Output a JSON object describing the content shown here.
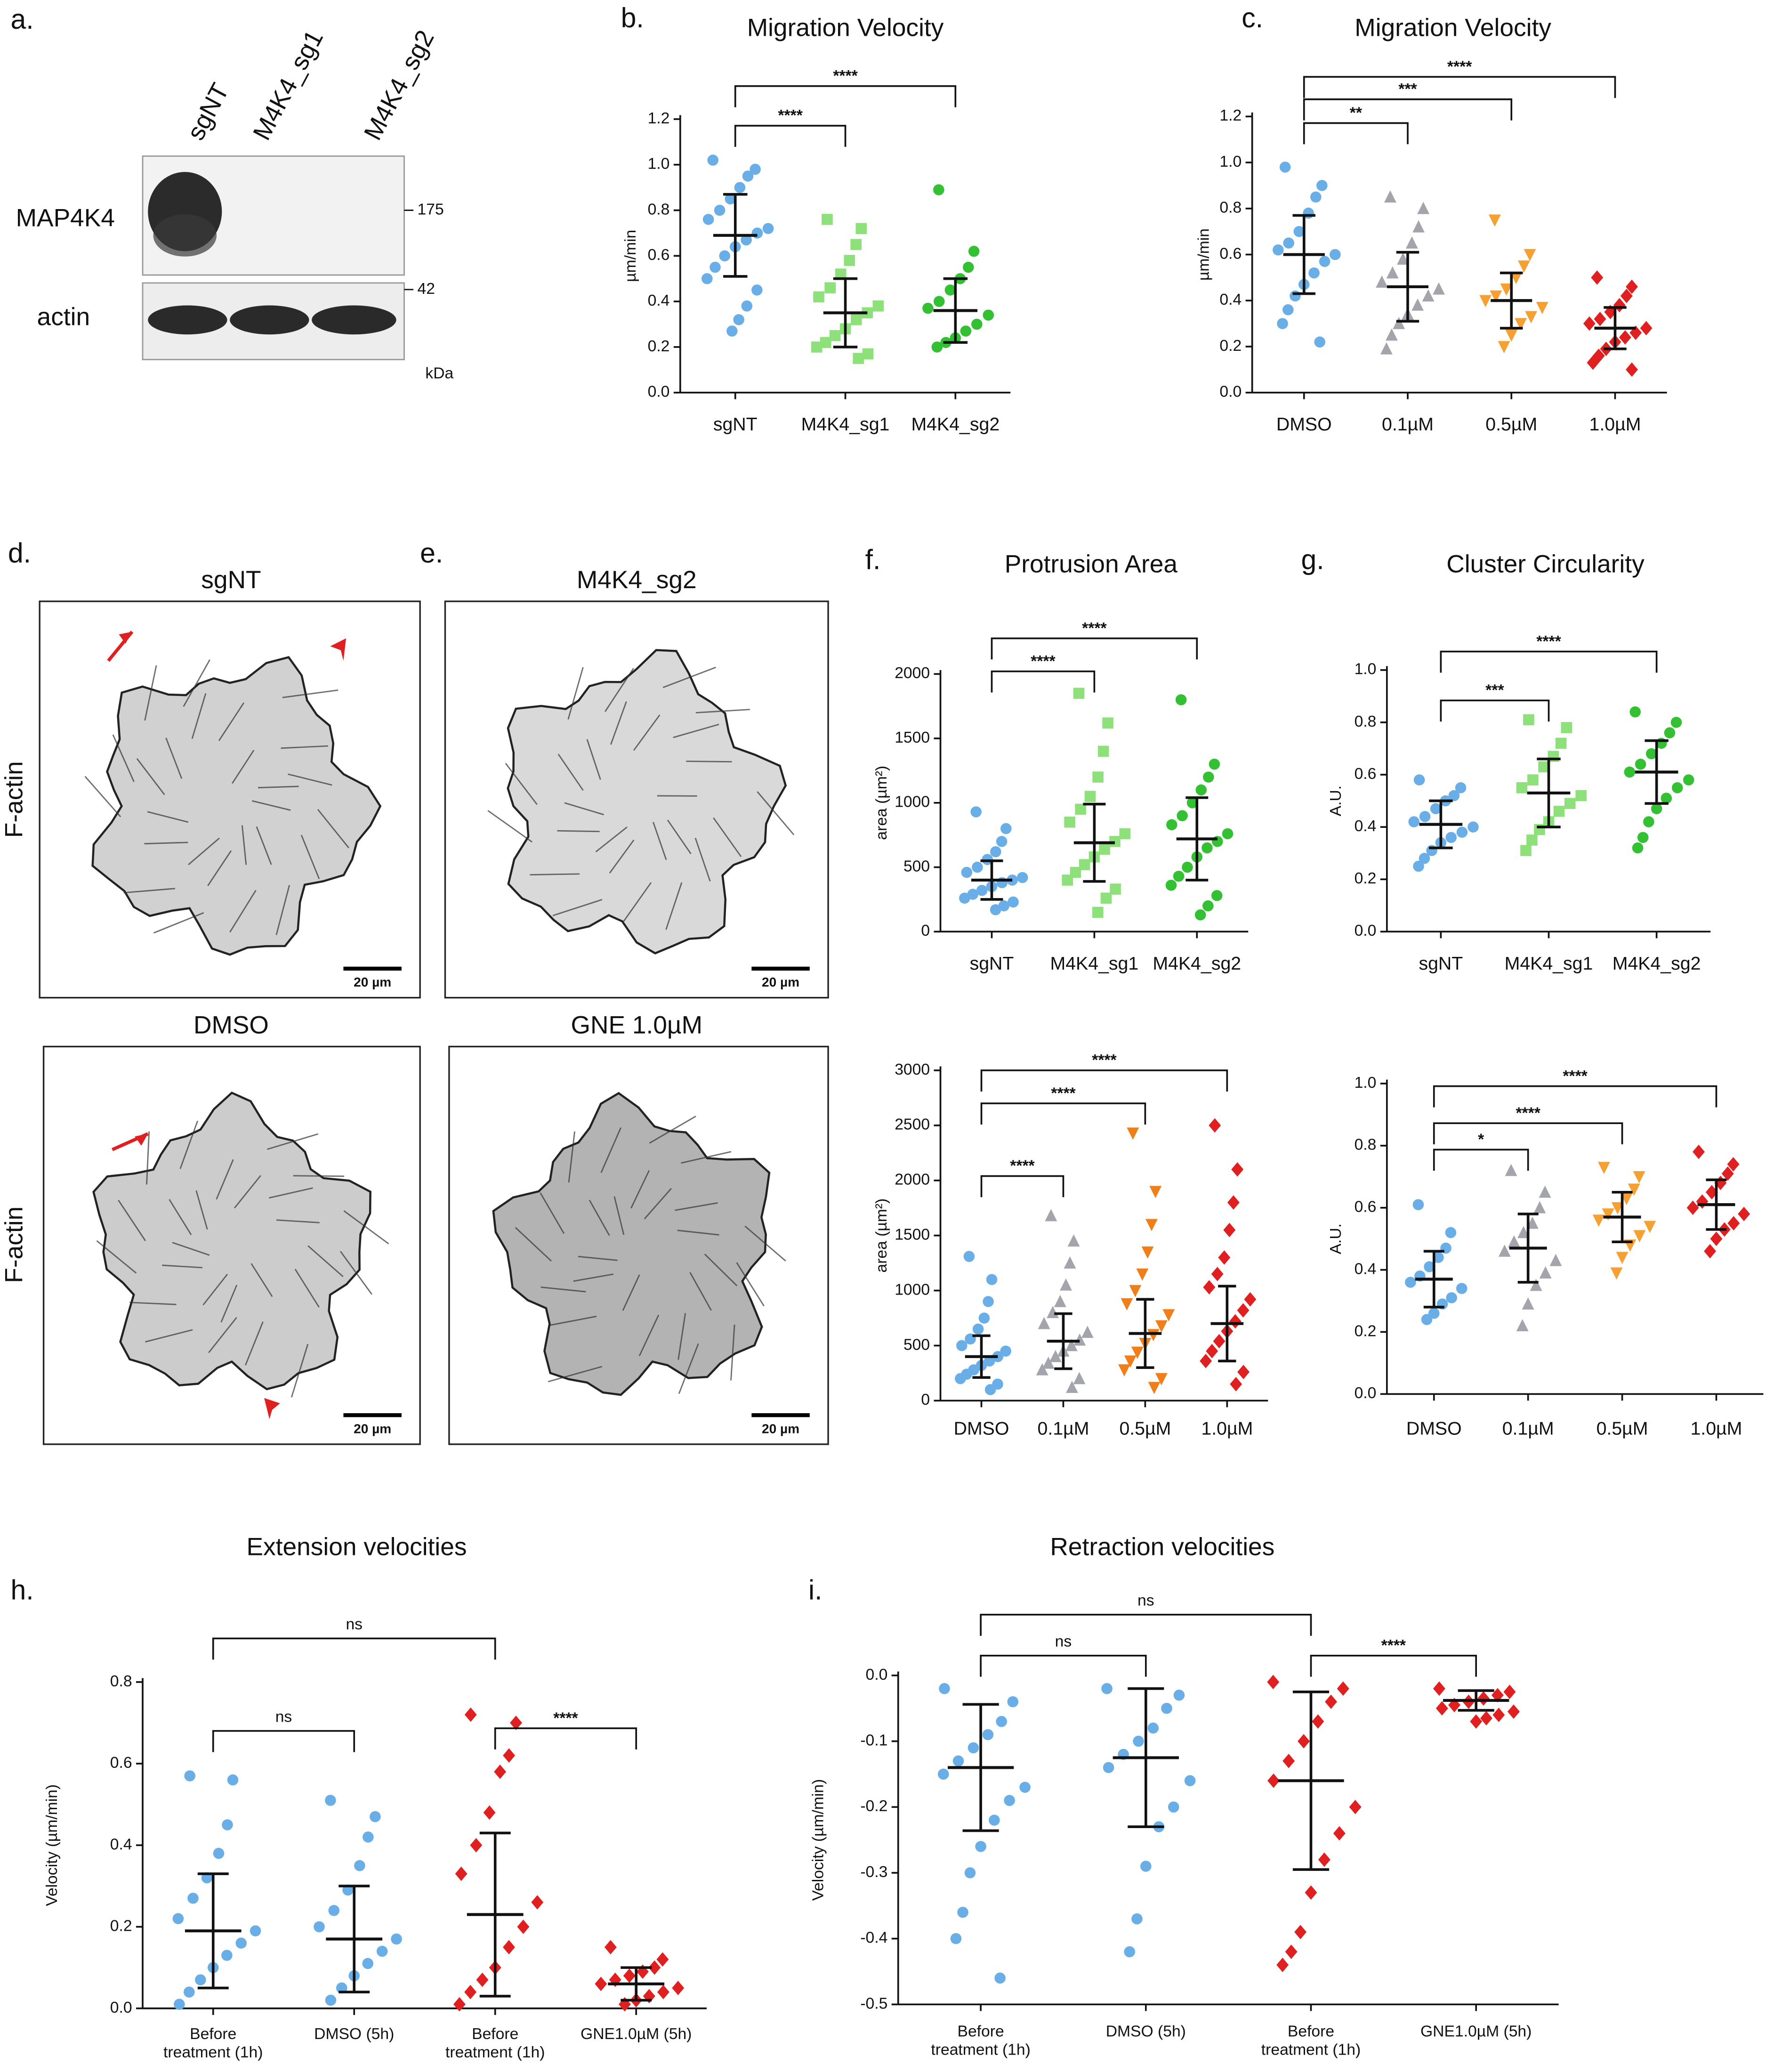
{
  "blot": {
    "label": "a.",
    "lanes": [
      "sgNT",
      "M4K4_sg1",
      "M4K4_sg2"
    ],
    "rows": [
      "MAP4K4",
      "actin"
    ],
    "markers": [
      175,
      42
    ],
    "unit": "kDa"
  },
  "micrographs": {
    "labels": [
      "d.",
      "e."
    ],
    "stain": "F-actin",
    "scale": "20 µm",
    "images": [
      {
        "title": "sgNT"
      },
      {
        "title": "M4K4_sg2"
      },
      {
        "title": "DMSO"
      },
      {
        "title": "GNE 1.0µM"
      }
    ]
  },
  "chart_data": [
    {
      "type": "dot",
      "label": "b.",
      "title": "Migration Velocity",
      "ylabel": "µm/min",
      "categories": [
        "sgNT",
        "M4K4_sg1",
        "M4K4_sg2"
      ],
      "ylim": [
        0,
        1.2
      ],
      "yticks": [
        {
          "value": 0,
          "label": "0.0"
        },
        0.2,
        0.4,
        0.6,
        0.8,
        {
          "value": 1,
          "label": "1.0"
        },
        1.2
      ],
      "groups": [
        {
          "color": "#6aaee8",
          "marker": "circle",
          "mean": 0.69,
          "sd": 0.18,
          "points": [
            1.02,
            0.98,
            0.95,
            0.9,
            0.85,
            0.8,
            0.76,
            0.72,
            0.7,
            0.67,
            0.64,
            0.6,
            0.55,
            0.5,
            0.45,
            0.38,
            0.32,
            0.27
          ]
        },
        {
          "color": "#8ee07a",
          "marker": "square",
          "mean": 0.35,
          "sd": 0.15,
          "points": [
            0.76,
            0.72,
            0.65,
            0.58,
            0.52,
            0.46,
            0.42,
            0.38,
            0.35,
            0.32,
            0.28,
            0.25,
            0.22,
            0.2,
            0.17,
            0.15
          ]
        },
        {
          "color": "#33c133",
          "marker": "circle",
          "mean": 0.36,
          "sd": 0.14,
          "points": [
            0.89,
            0.62,
            0.55,
            0.5,
            0.45,
            0.4,
            0.37,
            0.34,
            0.3,
            0.27,
            0.24,
            0.22,
            0.2
          ]
        }
      ],
      "brackets": [
        {
          "from": 0,
          "to": 1,
          "label": "****"
        },
        {
          "from": 0,
          "to": 2,
          "label": "****"
        }
      ]
    },
    {
      "type": "dot",
      "label": "c.",
      "title": "Migration Velocity",
      "ylabel": "µm/min",
      "categories": [
        "DMSO",
        "0.1µM",
        "0.5µM",
        "1.0µM"
      ],
      "ylim": [
        0,
        1.2
      ],
      "yticks": [
        {
          "value": 0,
          "label": "0.0"
        },
        0.2,
        0.4,
        0.6,
        0.8,
        {
          "value": 1,
          "label": "1.0"
        },
        1.2
      ],
      "groups": [
        {
          "color": "#6aaee8",
          "marker": "circle",
          "mean": 0.6,
          "sd": 0.17,
          "points": [
            0.98,
            0.9,
            0.85,
            0.78,
            0.7,
            0.65,
            0.62,
            0.6,
            0.57,
            0.52,
            0.47,
            0.42,
            0.36,
            0.3,
            0.22
          ]
        },
        {
          "color": "#a4a4ac",
          "marker": "triangle",
          "mean": 0.46,
          "sd": 0.15,
          "points": [
            0.85,
            0.8,
            0.72,
            0.65,
            0.58,
            0.52,
            0.48,
            0.45,
            0.42,
            0.38,
            0.34,
            0.3,
            0.25,
            0.19
          ]
        },
        {
          "color": "#f5a030",
          "marker": "triangle-down",
          "mean": 0.4,
          "sd": 0.12,
          "points": [
            0.75,
            0.6,
            0.55,
            0.5,
            0.45,
            0.42,
            0.4,
            0.37,
            0.33,
            0.3,
            0.25,
            0.2
          ]
        },
        {
          "color": "#e02020",
          "marker": "diamond",
          "mean": 0.28,
          "sd": 0.09,
          "points": [
            0.5,
            0.46,
            0.42,
            0.38,
            0.35,
            0.32,
            0.3,
            0.28,
            0.26,
            0.24,
            0.22,
            0.19,
            0.16,
            0.13,
            0.1
          ]
        }
      ],
      "brackets": [
        {
          "from": 0,
          "to": 1,
          "label": "**"
        },
        {
          "from": 0,
          "to": 2,
          "label": "***"
        },
        {
          "from": 0,
          "to": 3,
          "label": "****"
        }
      ]
    },
    {
      "type": "dot",
      "label": "f.",
      "title": "Protrusion Area",
      "ylabel": "area (µm²)",
      "categories": [
        "sgNT",
        "M4K4_sg1",
        "M4K4_sg2"
      ],
      "ylim": [
        0,
        2000
      ],
      "yticks": [
        0,
        500,
        1000,
        1500,
        2000
      ],
      "groups": [
        {
          "color": "#6aaee8",
          "marker": "circle",
          "mean": 400,
          "sd": 150,
          "points": [
            930,
            800,
            700,
            620,
            560,
            500,
            460,
            420,
            400,
            380,
            350,
            320,
            290,
            260,
            230,
            200,
            170
          ]
        },
        {
          "color": "#8ee07a",
          "marker": "square",
          "mean": 690,
          "sd": 300,
          "points": [
            1850,
            1620,
            1400,
            1200,
            1050,
            950,
            850,
            760,
            700,
            640,
            580,
            520,
            460,
            400,
            330,
            260,
            150
          ]
        },
        {
          "color": "#33c133",
          "marker": "circle",
          "mean": 720,
          "sd": 320,
          "points": [
            1800,
            1300,
            1200,
            1100,
            1000,
            900,
            830,
            760,
            700,
            650,
            580,
            500,
            430,
            360,
            280,
            200,
            130
          ]
        }
      ],
      "brackets": [
        {
          "from": 0,
          "to": 1,
          "label": "****"
        },
        {
          "from": 0,
          "to": 2,
          "label": "****"
        }
      ]
    },
    {
      "type": "dot",
      "label": "g.",
      "title": "Cluster Circularity",
      "ylabel": "A.U.",
      "categories": [
        "sgNT",
        "M4K4_sg1",
        "M4K4_sg2"
      ],
      "ylim": [
        0,
        1
      ],
      "yticks": [
        {
          "value": 0,
          "label": "0.0"
        },
        0.2,
        0.4,
        0.6,
        0.8,
        {
          "value": 1,
          "label": "1.0"
        }
      ],
      "groups": [
        {
          "color": "#6aaee8",
          "marker": "circle",
          "mean": 0.41,
          "sd": 0.09,
          "points": [
            0.58,
            0.55,
            0.52,
            0.5,
            0.47,
            0.44,
            0.42,
            0.4,
            0.38,
            0.36,
            0.34,
            0.31,
            0.28,
            0.25
          ]
        },
        {
          "color": "#8ee07a",
          "marker": "square",
          "mean": 0.53,
          "sd": 0.13,
          "points": [
            0.81,
            0.78,
            0.72,
            0.67,
            0.63,
            0.58,
            0.55,
            0.52,
            0.49,
            0.46,
            0.42,
            0.39,
            0.35,
            0.31
          ]
        },
        {
          "color": "#33c133",
          "marker": "circle",
          "mean": 0.61,
          "sd": 0.12,
          "points": [
            0.84,
            0.8,
            0.76,
            0.72,
            0.68,
            0.64,
            0.61,
            0.58,
            0.55,
            0.51,
            0.47,
            0.42,
            0.36,
            0.32
          ]
        }
      ],
      "brackets": [
        {
          "from": 0,
          "to": 1,
          "label": "***"
        },
        {
          "from": 0,
          "to": 2,
          "label": "****"
        }
      ]
    },
    {
      "type": "dot",
      "ylabel": "area (µm²)",
      "categories": [
        "DMSO",
        "0.1µM",
        "0.5µM",
        "1.0µM"
      ],
      "ylim": [
        0,
        3000
      ],
      "yticks": [
        0,
        500,
        1000,
        1500,
        2000,
        2500,
        3000
      ],
      "groups": [
        {
          "color": "#6aaee8",
          "marker": "circle",
          "mean": 400,
          "sd": 190,
          "points": [
            1310,
            1100,
            900,
            750,
            650,
            560,
            500,
            450,
            400,
            360,
            320,
            280,
            240,
            200,
            150,
            100
          ]
        },
        {
          "color": "#a4a4ac",
          "marker": "triangle",
          "mean": 540,
          "sd": 250,
          "points": [
            1680,
            1450,
            1250,
            1050,
            900,
            800,
            700,
            620,
            550,
            500,
            450,
            400,
            340,
            280,
            200,
            120
          ]
        },
        {
          "color": "#f07f1a",
          "marker": "triangle-down",
          "mean": 610,
          "sd": 310,
          "points": [
            2430,
            1900,
            1600,
            1350,
            1150,
            1000,
            880,
            780,
            680,
            600,
            520,
            440,
            360,
            280,
            200,
            120
          ]
        },
        {
          "color": "#e02020",
          "marker": "diamond",
          "mean": 700,
          "sd": 340,
          "points": [
            2500,
            2100,
            1800,
            1550,
            1300,
            1150,
            1030,
            920,
            820,
            720,
            630,
            540,
            450,
            360,
            260,
            150
          ]
        }
      ],
      "brackets": [
        {
          "from": 0,
          "to": 1,
          "label": "****"
        },
        {
          "from": 0,
          "to": 2,
          "label": "****"
        },
        {
          "from": 0,
          "to": 3,
          "label": "****"
        }
      ]
    },
    {
      "type": "dot",
      "ylabel": "A.U.",
      "categories": [
        "DMSO",
        "0.1µM",
        "0.5µM",
        "1.0µM"
      ],
      "ylim": [
        0,
        1
      ],
      "yticks": [
        {
          "value": 0,
          "label": "0.0"
        },
        0.2,
        0.4,
        0.6,
        0.8,
        {
          "value": 1,
          "label": "1.0"
        }
      ],
      "groups": [
        {
          "color": "#6aaee8",
          "marker": "circle",
          "mean": 0.37,
          "sd": 0.09,
          "points": [
            0.61,
            0.52,
            0.47,
            0.44,
            0.41,
            0.38,
            0.36,
            0.34,
            0.31,
            0.29,
            0.26,
            0.24
          ]
        },
        {
          "color": "#a4a4ac",
          "marker": "triangle",
          "mean": 0.47,
          "sd": 0.11,
          "points": [
            0.72,
            0.65,
            0.6,
            0.55,
            0.52,
            0.49,
            0.46,
            0.43,
            0.39,
            0.35,
            0.29,
            0.22
          ]
        },
        {
          "color": "#f5a030",
          "marker": "triangle-down",
          "mean": 0.57,
          "sd": 0.08,
          "points": [
            0.73,
            0.7,
            0.66,
            0.63,
            0.6,
            0.58,
            0.56,
            0.54,
            0.51,
            0.48,
            0.44,
            0.39
          ]
        },
        {
          "color": "#e02020",
          "marker": "diamond",
          "mean": 0.61,
          "sd": 0.08,
          "points": [
            0.78,
            0.74,
            0.71,
            0.68,
            0.65,
            0.62,
            0.6,
            0.58,
            0.55,
            0.53,
            0.5,
            0.46
          ]
        }
      ],
      "brackets": [
        {
          "from": 0,
          "to": 1,
          "label": "*"
        },
        {
          "from": 0,
          "to": 2,
          "label": "****"
        },
        {
          "from": 0,
          "to": 3,
          "label": "****"
        }
      ]
    },
    {
      "type": "dot",
      "label": "h.",
      "title": "Extension velocities",
      "ylabel": "Velocity (µm/min)",
      "categories": [
        [
          "Before",
          "treatment (1h)"
        ],
        [
          "DMSO (5h)"
        ],
        [
          "Before",
          "treatment (1h)"
        ],
        [
          "GNE1.0µM (5h)"
        ]
      ],
      "ylim": [
        0,
        0.8
      ],
      "yticks": [
        {
          "value": 0,
          "label": "0.0"
        },
        0.2,
        0.4,
        0.6,
        0.8
      ],
      "groups": [
        {
          "color": "#6aaee8",
          "marker": "circle",
          "mean": 0.19,
          "sd": 0.14,
          "points": [
            0.57,
            0.56,
            0.45,
            0.38,
            0.32,
            0.27,
            0.22,
            0.19,
            0.16,
            0.13,
            0.1,
            0.07,
            0.04,
            0.01
          ]
        },
        {
          "color": "#6aaee8",
          "marker": "circle",
          "mean": 0.17,
          "sd": 0.13,
          "points": [
            0.51,
            0.47,
            0.42,
            0.35,
            0.29,
            0.24,
            0.2,
            0.17,
            0.14,
            0.11,
            0.08,
            0.05,
            0.02
          ]
        },
        {
          "color": "#e02020",
          "marker": "diamond",
          "mean": 0.23,
          "sd": 0.2,
          "points": [
            0.72,
            0.7,
            0.62,
            0.58,
            0.48,
            0.4,
            0.33,
            0.26,
            0.2,
            0.15,
            0.1,
            0.07,
            0.04,
            0.01
          ]
        },
        {
          "color": "#e02020",
          "marker": "diamond",
          "mean": 0.06,
          "sd": 0.04,
          "points": [
            0.15,
            0.12,
            0.1,
            0.09,
            0.08,
            0.07,
            0.06,
            0.05,
            0.04,
            0.03,
            0.02,
            0.01
          ]
        }
      ],
      "brackets": [
        {
          "from": 0,
          "to": 1,
          "label": "ns"
        },
        {
          "from": 0,
          "to": 2,
          "label": "ns"
        },
        {
          "from": 2,
          "to": 3,
          "label": "****"
        }
      ]
    },
    {
      "type": "dot",
      "label": "i.",
      "title": "Retraction velocities",
      "ylabel": "Velocity (µm/min)",
      "categories": [
        [
          "Before",
          "treatment (1h)"
        ],
        [
          "DMSO (5h)"
        ],
        [
          "Before",
          "treatment (1h)"
        ],
        [
          "GNE1.0µM (5h)"
        ]
      ],
      "ylim": [
        -0.5,
        0
      ],
      "yticks": [
        {
          "value": 0,
          "label": "0.0"
        },
        -0.1,
        -0.2,
        -0.3,
        -0.4,
        -0.5
      ],
      "groups": [
        {
          "color": "#6aaee8",
          "marker": "circle",
          "mean": -0.14,
          "sd": 0.096,
          "points": [
            -0.02,
            -0.04,
            -0.07,
            -0.09,
            -0.11,
            -0.13,
            -0.15,
            -0.17,
            -0.19,
            -0.22,
            -0.26,
            -0.3,
            -0.36,
            -0.4,
            -0.46
          ]
        },
        {
          "color": "#6aaee8",
          "marker": "circle",
          "mean": -0.125,
          "sd": 0.105,
          "points": [
            -0.02,
            -0.03,
            -0.05,
            -0.08,
            -0.1,
            -0.12,
            -0.14,
            -0.16,
            -0.2,
            -0.23,
            -0.29,
            -0.37,
            -0.42
          ]
        },
        {
          "color": "#e02020",
          "marker": "diamond",
          "mean": -0.16,
          "sd": 0.135,
          "points": [
            -0.01,
            -0.02,
            -0.04,
            -0.07,
            -0.1,
            -0.13,
            -0.16,
            -0.2,
            -0.24,
            -0.28,
            -0.33,
            -0.39,
            -0.42,
            -0.44
          ]
        },
        {
          "color": "#e02020",
          "marker": "diamond",
          "mean": -0.038,
          "sd": 0.015,
          "points": [
            -0.02,
            -0.025,
            -0.03,
            -0.035,
            -0.04,
            -0.045,
            -0.05,
            -0.055,
            -0.06,
            -0.065,
            -0.07
          ]
        }
      ],
      "brackets": [
        {
          "from": 0,
          "to": 1,
          "label": "ns"
        },
        {
          "from": 0,
          "to": 2,
          "label": "ns"
        },
        {
          "from": 2,
          "to": 3,
          "label": "****"
        }
      ]
    }
  ]
}
